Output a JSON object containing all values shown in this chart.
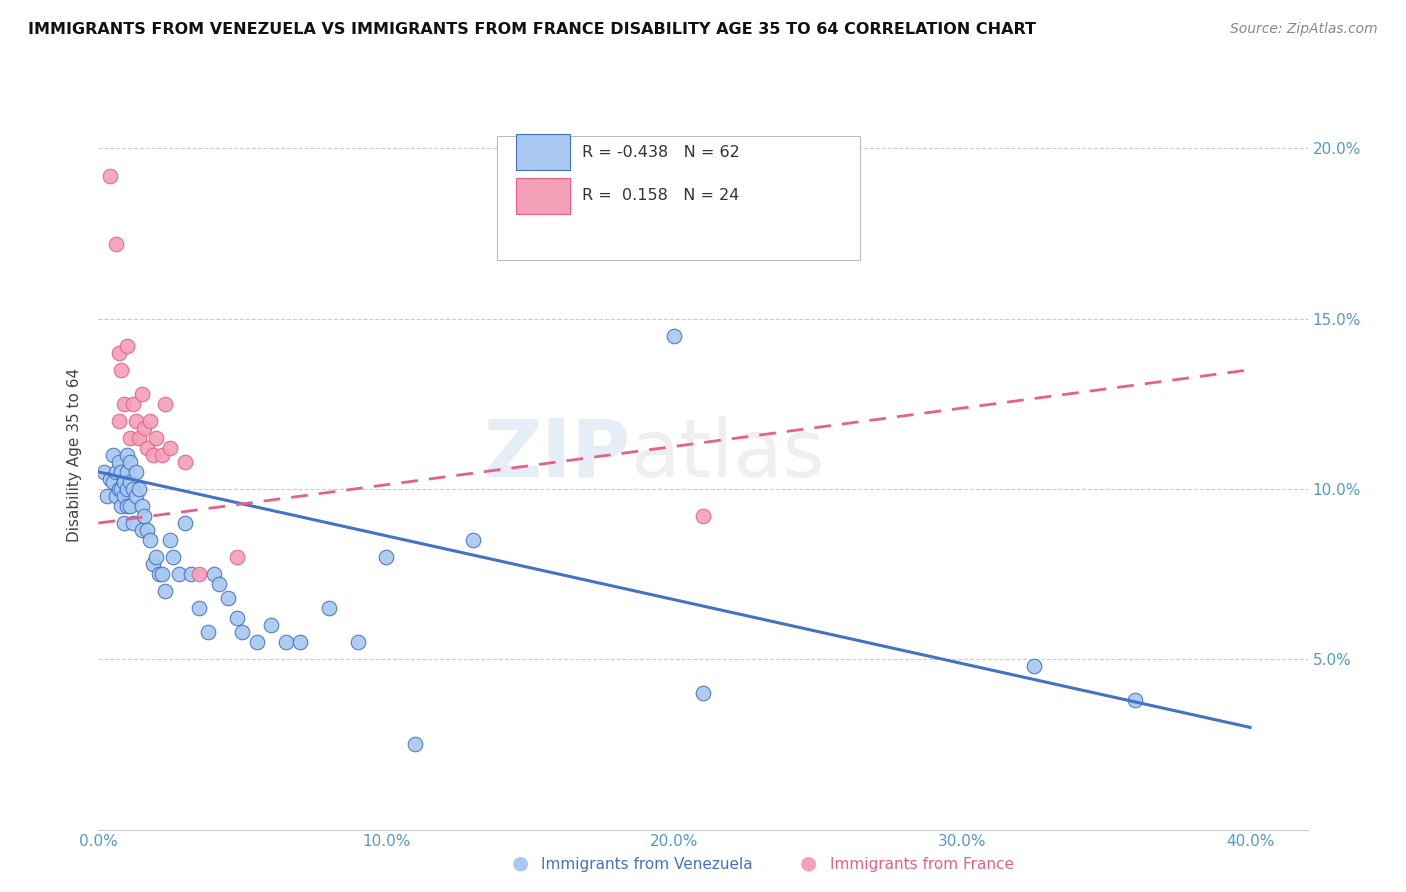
{
  "title": "IMMIGRANTS FROM VENEZUELA VS IMMIGRANTS FROM FRANCE DISABILITY AGE 35 TO 64 CORRELATION CHART",
  "source": "Source: ZipAtlas.com",
  "ylabel": "Disability Age 35 to 64",
  "xlim": [
    0.0,
    0.42
  ],
  "ylim": [
    0.0,
    0.22
  ],
  "xtick_labels": [
    "0.0%",
    "",
    "10.0%",
    "",
    "20.0%",
    "",
    "30.0%",
    "",
    "40.0%"
  ],
  "xtick_vals": [
    0.0,
    0.05,
    0.1,
    0.15,
    0.2,
    0.25,
    0.3,
    0.35,
    0.4
  ],
  "ytick_labels": [
    "5.0%",
    "10.0%",
    "15.0%",
    "20.0%"
  ],
  "ytick_vals": [
    0.05,
    0.1,
    0.15,
    0.2
  ],
  "legend_r1": "R = -0.438",
  "legend_n1": "N = 62",
  "legend_r2": "R =  0.158",
  "legend_n2": "N = 24",
  "color_blue": "#A8C8F0",
  "color_pink": "#F4A0B8",
  "line_color_blue": "#4472C4",
  "line_color_pink": "#E8608A",
  "tick_color": "#5599CC",
  "watermark_zip": "ZIP",
  "watermark_atlas": "atlas",
  "venezuela_x": [
    0.002,
    0.003,
    0.004,
    0.005,
    0.005,
    0.006,
    0.006,
    0.007,
    0.007,
    0.008,
    0.008,
    0.008,
    0.009,
    0.009,
    0.009,
    0.01,
    0.01,
    0.01,
    0.01,
    0.011,
    0.011,
    0.011,
    0.012,
    0.012,
    0.013,
    0.013,
    0.014,
    0.015,
    0.015,
    0.016,
    0.017,
    0.018,
    0.019,
    0.02,
    0.021,
    0.022,
    0.023,
    0.025,
    0.026,
    0.028,
    0.03,
    0.032,
    0.035,
    0.038,
    0.04,
    0.042,
    0.045,
    0.048,
    0.05,
    0.055,
    0.06,
    0.065,
    0.07,
    0.08,
    0.09,
    0.1,
    0.11,
    0.13,
    0.2,
    0.21,
    0.325,
    0.36
  ],
  "venezuela_y": [
    0.105,
    0.098,
    0.103,
    0.11,
    0.102,
    0.105,
    0.098,
    0.108,
    0.1,
    0.105,
    0.1,
    0.095,
    0.102,
    0.098,
    0.09,
    0.11,
    0.105,
    0.1,
    0.095,
    0.108,
    0.102,
    0.095,
    0.1,
    0.09,
    0.105,
    0.098,
    0.1,
    0.095,
    0.088,
    0.092,
    0.088,
    0.085,
    0.078,
    0.08,
    0.075,
    0.075,
    0.07,
    0.085,
    0.08,
    0.075,
    0.09,
    0.075,
    0.065,
    0.058,
    0.075,
    0.072,
    0.068,
    0.062,
    0.058,
    0.055,
    0.06,
    0.055,
    0.055,
    0.065,
    0.055,
    0.08,
    0.025,
    0.085,
    0.145,
    0.04,
    0.048,
    0.038
  ],
  "france_x": [
    0.004,
    0.006,
    0.007,
    0.007,
    0.008,
    0.009,
    0.01,
    0.011,
    0.012,
    0.013,
    0.014,
    0.015,
    0.016,
    0.017,
    0.018,
    0.019,
    0.02,
    0.022,
    0.023,
    0.025,
    0.03,
    0.035,
    0.048,
    0.21
  ],
  "france_y": [
    0.192,
    0.172,
    0.14,
    0.12,
    0.135,
    0.125,
    0.142,
    0.115,
    0.125,
    0.12,
    0.115,
    0.128,
    0.118,
    0.112,
    0.12,
    0.11,
    0.115,
    0.11,
    0.125,
    0.112,
    0.108,
    0.075,
    0.08,
    0.092
  ],
  "blue_line_x": [
    0.0,
    0.4
  ],
  "blue_line_y": [
    0.105,
    0.03
  ],
  "pink_line_x": [
    0.0,
    0.4
  ],
  "pink_line_y": [
    0.09,
    0.135
  ]
}
